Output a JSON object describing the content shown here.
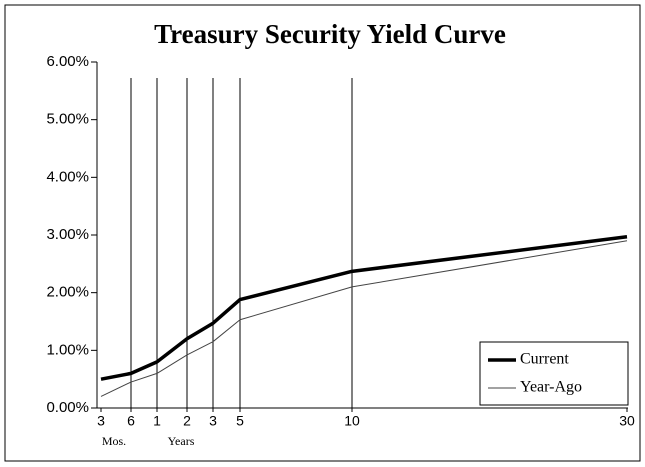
{
  "chart_data": {
    "type": "line",
    "title": "Treasury Security Yield Curve",
    "categories": [
      "3",
      "6",
      "1",
      "2",
      "3",
      "5",
      "10",
      "30"
    ],
    "x_group_labels": [
      "Mos.",
      "Years"
    ],
    "series": [
      {
        "name": "Current",
        "color": "#000000",
        "values": [
          0.5,
          0.6,
          0.8,
          1.2,
          1.47,
          1.88,
          2.37,
          2.97
        ]
      },
      {
        "name": "Year-Ago",
        "color": "#444444",
        "values": [
          0.2,
          0.45,
          0.6,
          0.92,
          1.15,
          1.53,
          2.1,
          2.9
        ]
      }
    ],
    "ylim": [
      0,
      6
    ],
    "yticks": [
      {
        "value": 0,
        "label": "0.00%"
      },
      {
        "value": 1,
        "label": "1.00%"
      },
      {
        "value": 2,
        "label": "2.00%"
      },
      {
        "value": 3,
        "label": "3.00%"
      },
      {
        "value": 4,
        "label": "4.00%"
      },
      {
        "value": 5,
        "label": "5.00%"
      },
      {
        "value": 6,
        "label": "6.00%"
      }
    ],
    "legend": "lower right"
  }
}
